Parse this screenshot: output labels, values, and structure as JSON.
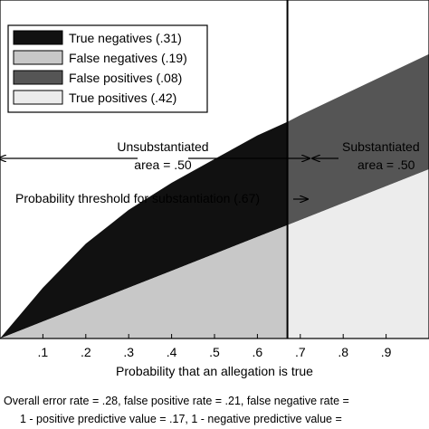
{
  "chart_data": {
    "type": "area",
    "xlabel": "Probability that an allegation is true",
    "xticks": [
      0.1,
      0.2,
      0.3,
      0.4,
      0.5,
      0.6,
      0.7,
      0.8,
      0.9
    ],
    "xtick_labels": [
      ".1",
      ".2",
      ".3",
      ".4",
      ".5",
      ".6",
      ".7",
      ".8",
      ".9"
    ],
    "xlim": [
      0,
      1
    ],
    "ylim": [
      0,
      1
    ],
    "threshold": 0.67,
    "legend": {
      "position": "top-left",
      "entries": [
        {
          "label": "True negatives (.31)",
          "color": "#111111"
        },
        {
          "label": "False negatives (.19)",
          "color": "#c8c8c8"
        },
        {
          "label": "False positives (.08)",
          "color": "#555555"
        },
        {
          "label": "True positives (.42)",
          "color": "#ececec"
        }
      ]
    },
    "series": [
      {
        "name": "True negatives (.31)",
        "x": [
          0,
          0.1,
          0.2,
          0.3,
          0.4,
          0.5,
          0.6,
          0.67
        ],
        "lower": [
          0,
          0.05,
          0.1,
          0.15,
          0.2,
          0.25,
          0.3,
          0.335
        ],
        "upper": [
          0,
          0.15,
          0.28,
          0.38,
          0.46,
          0.53,
          0.6,
          0.64
        ]
      },
      {
        "name": "False negatives (.19)",
        "x": [
          0,
          0.1,
          0.2,
          0.3,
          0.4,
          0.5,
          0.6,
          0.67
        ],
        "lower": [
          0,
          0,
          0,
          0,
          0,
          0,
          0,
          0
        ],
        "upper": [
          0,
          0.05,
          0.1,
          0.15,
          0.2,
          0.25,
          0.3,
          0.335
        ]
      },
      {
        "name": "False positives (.08)",
        "x": [
          0.67,
          0.7,
          0.8,
          0.9,
          1.0
        ],
        "lower": [
          0.335,
          0.35,
          0.4,
          0.45,
          0.5
        ],
        "upper": [
          0.64,
          0.66,
          0.72,
          0.78,
          0.84
        ]
      },
      {
        "name": "True positives (.42)",
        "x": [
          0.67,
          0.7,
          0.8,
          0.9,
          1.0
        ],
        "lower": [
          0,
          0,
          0,
          0,
          0
        ],
        "upper": [
          0.335,
          0.35,
          0.4,
          0.45,
          0.5
        ]
      }
    ],
    "annotations": {
      "unsubstantiated_line1": "Unsubstantiated",
      "unsubstantiated_line2": "area = .50",
      "substantiated_line1": "Substantiated",
      "substantiated_line2": "area = .50",
      "threshold_label": "Probability threshold for substantiation (.67)"
    },
    "footnote_line1": "Overall error rate = .28, false positive rate = .21, false negative rate =",
    "footnote_line2": "1 - positive predictive value = .17, 1 - negative predictive value = "
  }
}
